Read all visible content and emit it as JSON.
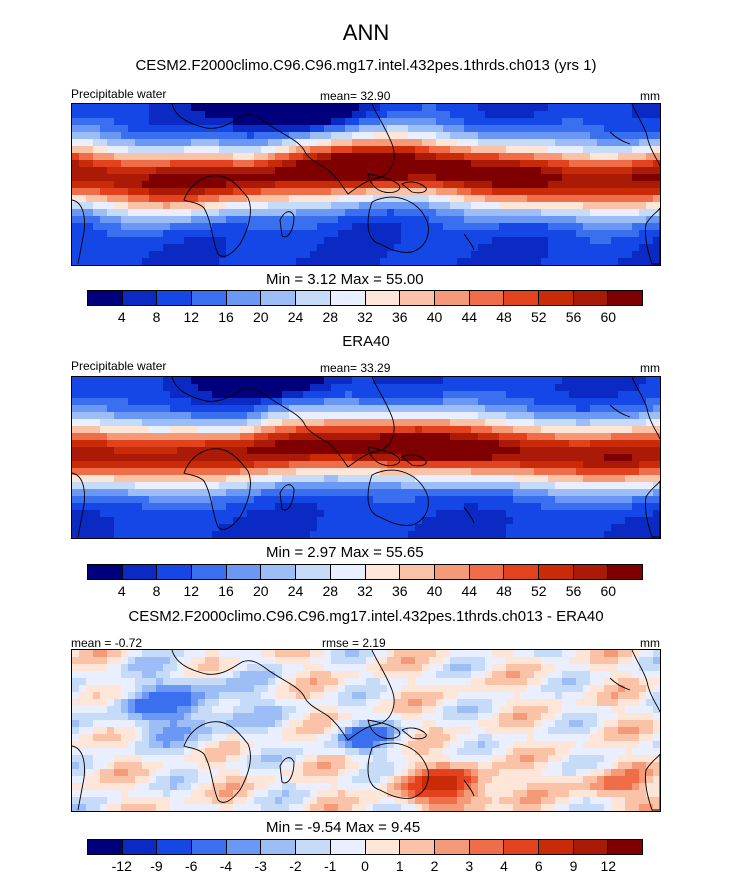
{
  "title": "ANN",
  "palette": [
    "#00007d",
    "#0b2ac4",
    "#1547e6",
    "#3a6fef",
    "#6b98f4",
    "#9cbdf6",
    "#c6dbf8",
    "#e9efff",
    "#fde6d8",
    "#fac3a8",
    "#f59a78",
    "#ef6d48",
    "#e2431e",
    "#c92a08",
    "#aa1a06",
    "#7e0000"
  ],
  "panels": [
    {
      "subtitle": "CESM2.F2000climo.C96.C96.mg17.intel.432pes.1thrds.ch013 (yrs 1)",
      "left_label": "Precipitable water",
      "center_label": "mean=  32.90",
      "right_label": "mm",
      "field": "model",
      "minmax": "Min =   3.12 Max =  55.00",
      "ticks": [
        "4",
        "8",
        "12",
        "16",
        "20",
        "24",
        "28",
        "32",
        "36",
        "40",
        "44",
        "48",
        "52",
        "56",
        "60"
      ]
    },
    {
      "subtitle": "ERA40",
      "left_label": "Precipitable water",
      "center_label": "mean=  33.29",
      "right_label": "mm",
      "field": "obs",
      "minmax": "Min =   2.97 Max =  55.65",
      "ticks": [
        "4",
        "8",
        "12",
        "16",
        "20",
        "24",
        "28",
        "32",
        "36",
        "40",
        "44",
        "48",
        "52",
        "56",
        "60"
      ]
    },
    {
      "subtitle": "CESM2.F2000climo.C96.C96.mg17.intel.432pes.1thrds.ch013 - ERA40",
      "left_label": "mean =  -0.72",
      "center_label": "rmse =   2.19",
      "right_label": "mm",
      "field": "diff",
      "minmax": "Min =  -9.54 Max =   9.45",
      "ticks": [
        "-12",
        "-9",
        "-6",
        "-4",
        "-3",
        "-2",
        "-1",
        "0",
        "1",
        "2",
        "3",
        "4",
        "6",
        "9",
        "12"
      ]
    }
  ]
}
